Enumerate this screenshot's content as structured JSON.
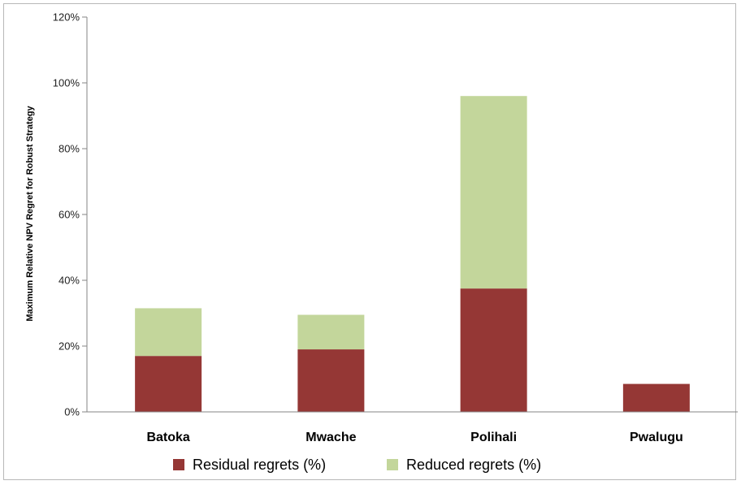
{
  "chart_data": {
    "type": "bar",
    "stacked": true,
    "title": "",
    "xlabel": "",
    "ylabel": "Maximum Relative NPV Regret for Robust Strategy",
    "categories": [
      "Batoka",
      "Mwache",
      "Polihali",
      "Pwalugu"
    ],
    "series": [
      {
        "name": "Residual regrets (%)",
        "color": "#953735",
        "values": [
          17,
          19,
          37.5,
          8.5
        ]
      },
      {
        "name": "Reduced regrets (%)",
        "color": "#c3d69b",
        "values": [
          14.5,
          10.5,
          58.5,
          0
        ]
      }
    ],
    "ylim": [
      0,
      120
    ],
    "yticks": [
      "0%",
      "20%",
      "40%",
      "60%",
      "80%",
      "100%",
      "120%"
    ],
    "grid": false,
    "legend": "bottom"
  }
}
